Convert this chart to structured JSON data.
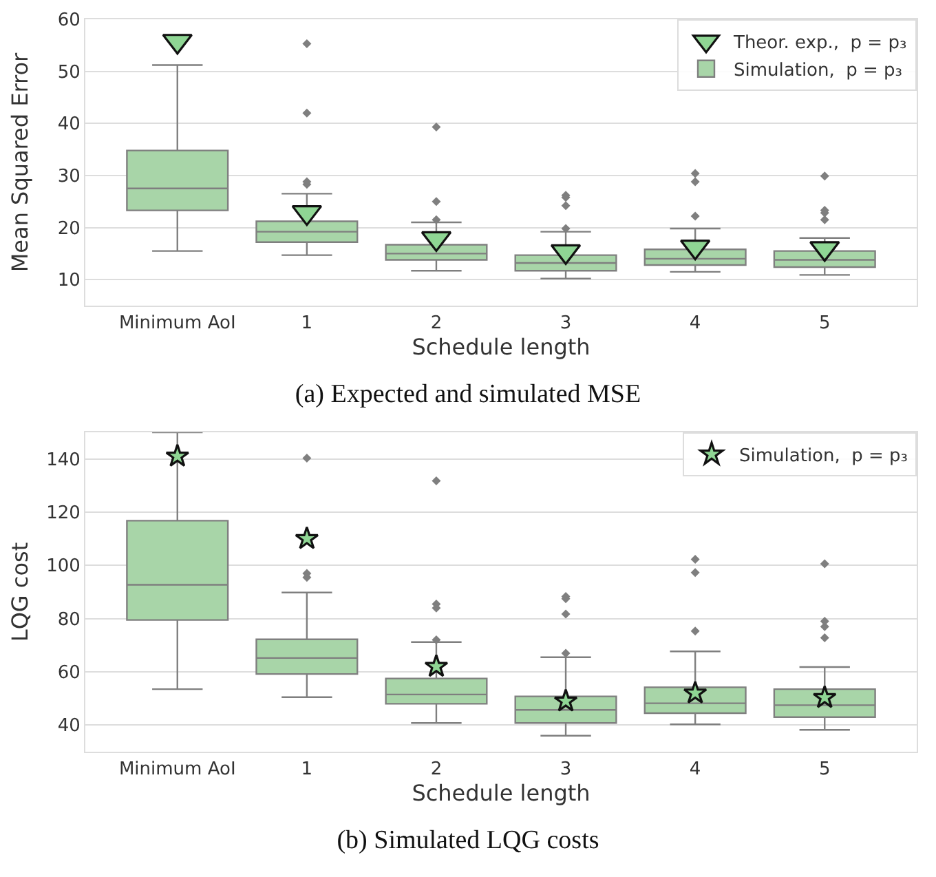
{
  "chart_data": [
    {
      "type": "box",
      "xlabel": "Schedule length",
      "ylabel": "Mean Squared Error",
      "annotations": [
        "(a)  Expected and simulated MSE"
      ],
      "categories": [
        "Minimum AoI",
        "1",
        "2",
        "3",
        "4",
        "5"
      ],
      "ylim": [
        5,
        60
      ],
      "yticks": [
        10,
        20,
        30,
        40,
        50,
        60
      ],
      "grid": "y",
      "legend": "top right",
      "series": [
        {
          "name": "Simulation,  p = p₃",
          "color": "#a8d5a8",
          "boxes": [
            {
              "low": 15.5,
              "q1": 23.3,
              "median": 27.5,
              "q3": 34.8,
              "high": 51.2
            },
            {
              "low": 14.7,
              "q1": 17.2,
              "median": 19.2,
              "q3": 21.2,
              "high": 26.5,
              "outliers": [
                28.3,
                28.8,
                42,
                55.3
              ]
            },
            {
              "low": 11.7,
              "q1": 13.8,
              "median": 15,
              "q3": 16.7,
              "high": 21,
              "outliers": [
                21.5,
                25,
                39.3
              ]
            },
            {
              "low": 10.2,
              "q1": 11.7,
              "median": 13.2,
              "q3": 14.7,
              "high": 19.2,
              "outliers": [
                19.8,
                24.2,
                25.8,
                26.2
              ]
            },
            {
              "low": 11.5,
              "q1": 12.8,
              "median": 14,
              "q3": 15.8,
              "high": 19.8,
              "outliers": [
                22.2,
                28.8,
                30.4
              ]
            },
            {
              "low": 10.9,
              "q1": 12.4,
              "median": 13.8,
              "q3": 15.5,
              "high": 18,
              "outliers": [
                21.5,
                22.8,
                23.3,
                29.9
              ]
            }
          ]
        },
        {
          "type": "scatter",
          "name": "Theor. exp.,  p = p₃",
          "color": "#8fd694",
          "marker": "triangle",
          "x": [
            "Minimum AoI",
            "1",
            "2",
            "3",
            "4",
            "5"
          ],
          "values": [
            55.8,
            22.9,
            17.9,
            15.4,
            16.3,
            16
          ]
        }
      ]
    },
    {
      "type": "box",
      "xlabel": "Schedule length",
      "ylabel": "LQG cost",
      "annotations": [
        "(b)  Simulated LQG costs"
      ],
      "categories": [
        "Minimum AoI",
        "1",
        "2",
        "3",
        "4",
        "5"
      ],
      "ylim": [
        30,
        150
      ],
      "yticks": [
        40,
        60,
        80,
        100,
        120,
        140
      ],
      "grid": "y",
      "legend": "top right",
      "series": [
        {
          "color": "#a8d5a8",
          "boxes": [
            {
              "low": 53.5,
              "q1": 79.5,
              "median": 92.7,
              "q3": 116.8,
              "high": 150
            },
            {
              "low": 50.5,
              "q1": 59.2,
              "median": 65.2,
              "q3": 72.2,
              "high": 89.8,
              "outliers": [
                95.5,
                97,
                140.3
              ]
            },
            {
              "low": 40.8,
              "q1": 48,
              "median": 51.5,
              "q3": 57.5,
              "high": 71.2,
              "outliers": [
                72,
                84,
                85.5,
                131.8
              ]
            },
            {
              "low": 36,
              "q1": 40.8,
              "median": 45.7,
              "q3": 50.8,
              "high": 65.5,
              "outliers": [
                67,
                81.7,
                87.5,
                88.3
              ]
            },
            {
              "low": 40.3,
              "q1": 44.5,
              "median": 48.2,
              "q3": 54.2,
              "high": 67.7,
              "outliers": [
                75.3,
                97.3,
                102.3
              ]
            },
            {
              "low": 38.2,
              "q1": 43,
              "median": 47.5,
              "q3": 53.5,
              "high": 61.8,
              "outliers": [
                72.8,
                77,
                79,
                100.6
              ]
            }
          ]
        },
        {
          "type": "scatter",
          "name": "Simulation,  p = p₃",
          "color": "#8fd694",
          "marker": "star",
          "x": [
            "Minimum AoI",
            "1",
            "2",
            "3",
            "4",
            "5"
          ],
          "values": [
            141,
            110,
            62,
            49,
            52,
            50.3
          ]
        }
      ]
    }
  ]
}
